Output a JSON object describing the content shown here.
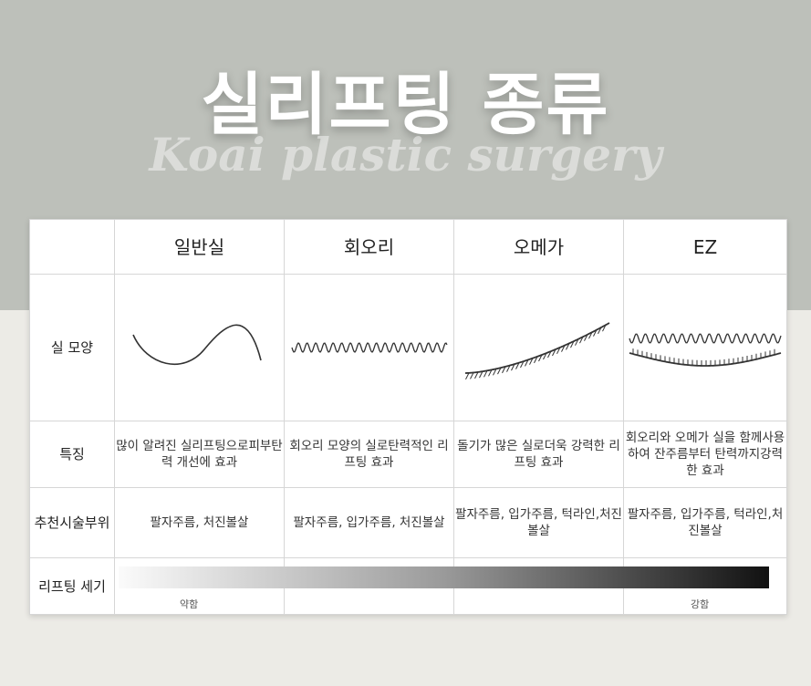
{
  "header": {
    "title": "실리프팅 종류",
    "watermark": "Koai plastic surgery"
  },
  "table": {
    "columns": [
      "일반실",
      "회오리",
      "오메가",
      "EZ"
    ],
    "rows": [
      {
        "label": [
          "실 모양"
        ],
        "cells": []
      },
      {
        "label": [
          "특징"
        ],
        "cells": [
          [
            "많이 알려진 실리프팅으로",
            "피부탄력 개선에 효과"
          ],
          [
            "회오리 모양의 실로",
            "탄력적인 리프팅 효과"
          ],
          [
            "돌기가 많은 실로",
            "더욱 강력한 리프팅 효과"
          ],
          [
            "회오리와 오메가 실을 함께",
            "사용하여 잔주름부터 탄력까지",
            "강력한 효과"
          ]
        ]
      },
      {
        "label": [
          "추천",
          "시술부위"
        ],
        "cells": [
          [
            "팔자주름, 처진볼살"
          ],
          [
            "팔자주름, 입가주름, 처진볼살"
          ],
          [
            "팔자주름, 입가주름, 턱라인,",
            "처진볼살"
          ],
          [
            "팔자주름, 입가주름, 턱라인,",
            "처진볼살"
          ]
        ]
      },
      {
        "label": [
          "리프팅 세기"
        ],
        "cells": []
      }
    ],
    "strength": {
      "low": "약함",
      "high": "강함"
    }
  }
}
